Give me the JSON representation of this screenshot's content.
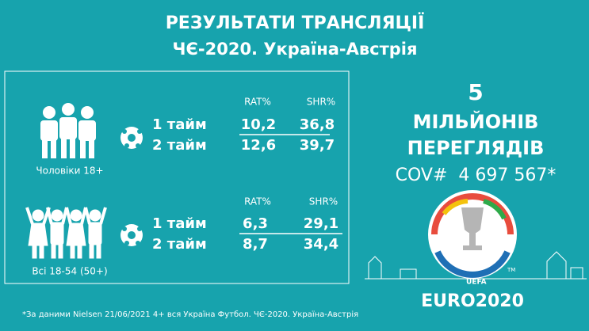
{
  "header": {
    "title": "РЕЗУЛЬТАТИ ТРАНСЛЯЦІЇ",
    "subtitle": "ЧЄ-2020. Україна-Австрія"
  },
  "groups": [
    {
      "label": "Чоловіки 18+",
      "columns": [
        "RAT%",
        "SHR%"
      ],
      "rows": [
        [
          "1 тайм",
          "10,2",
          "36,8"
        ],
        [
          "2 тайм",
          "12,6",
          "39,7"
        ]
      ]
    },
    {
      "label": "Всі 18-54 (50+)",
      "columns": [
        "RAT%",
        "SHR%"
      ],
      "rows": [
        [
          "1 тайм",
          "6,3",
          "29,1"
        ],
        [
          "2 тайм",
          "8,7",
          "34,4"
        ]
      ]
    }
  ],
  "summary": {
    "number": "5",
    "line1": "МІЛЬЙОНІВ",
    "line2": "ПЕРЕГЛЯДІВ",
    "cov": "COV#  4 697 567*"
  },
  "logo": {
    "uefa": "UEFA",
    "euro": "EURO2020",
    "tm": "TM"
  },
  "footnote": "*За даними Nielsen 21/06/2021 4+ вся Україна Футбол. ЧЄ-2020. Україна-Австрія"
}
